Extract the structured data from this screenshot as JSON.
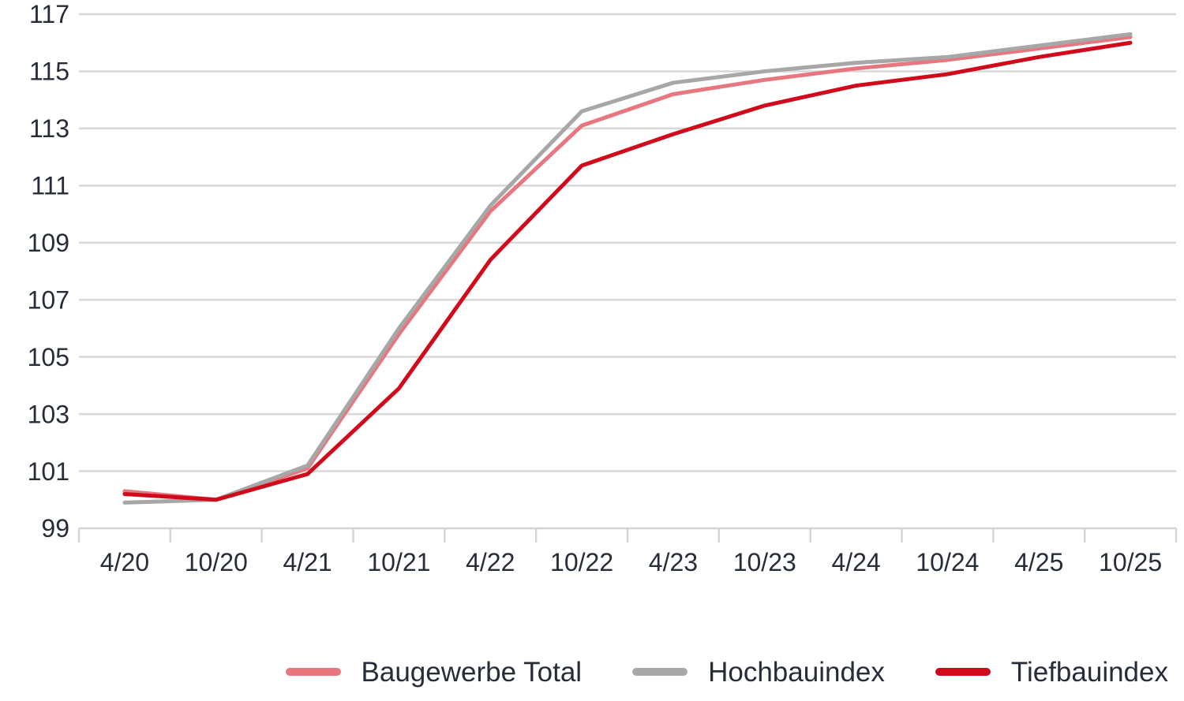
{
  "chart_data": {
    "type": "line",
    "categories": [
      "4/20",
      "10/20",
      "4/21",
      "10/21",
      "4/22",
      "10/22",
      "4/23",
      "10/23",
      "4/24",
      "10/24",
      "4/25",
      "10/25"
    ],
    "series": [
      {
        "name": "Baugewerbe Total",
        "color": "#E8767E",
        "values": [
          100.3,
          100.0,
          101.1,
          105.8,
          110.1,
          113.1,
          114.2,
          114.7,
          115.1,
          115.4,
          115.8,
          116.2
        ]
      },
      {
        "name": "Hochbauindex",
        "color": "#A7A7A7",
        "values": [
          99.9,
          100.0,
          101.2,
          106.0,
          110.3,
          113.6,
          114.6,
          115.0,
          115.3,
          115.5,
          115.9,
          116.3
        ]
      },
      {
        "name": "Tiefbauindex",
        "color": "#D10A1B",
        "values": [
          100.2,
          100.0,
          100.9,
          103.9,
          108.4,
          111.7,
          112.8,
          113.8,
          114.5,
          114.9,
          115.5,
          116.0
        ]
      }
    ],
    "title": "",
    "xlabel": "",
    "ylabel": "",
    "ylim": [
      99,
      117
    ],
    "ytick_step": 2,
    "yticks": [
      99,
      101,
      103,
      105,
      107,
      109,
      111,
      113,
      115,
      117
    ],
    "grid": "horizontal",
    "legend_position": "bottom"
  },
  "colors": {
    "text": "#262C38",
    "grid": "#D8D8D8",
    "axis": "#D4D4D4",
    "background": "#FFFFFF"
  }
}
